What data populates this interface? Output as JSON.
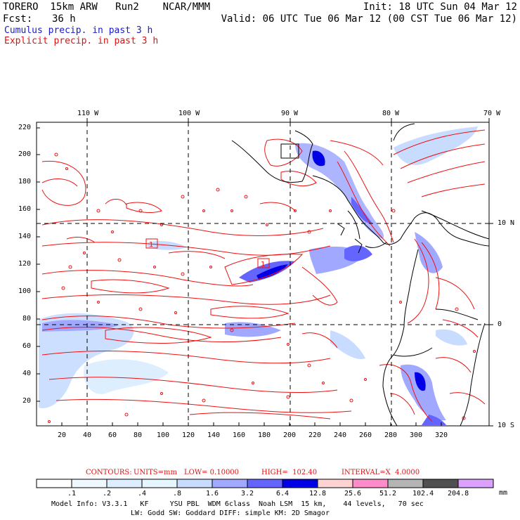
{
  "header": {
    "model_line": "TORERO  15km ARW   Run2    NCAR/MMM",
    "init": "Init: 18 UTC Sun 04 Mar 12",
    "fcst_label": "Fcst:",
    "fcst_value": "36 h",
    "valid": "Valid: 06 UTC Tue 06 Mar 12 (00 CST Tue 06 Mar 12)"
  },
  "legend": {
    "cumulus": "Cumulus precip. in past 3 h",
    "explicit": "Explicit precip. in past 3 h"
  },
  "map": {
    "lon_labels": [
      "110 W",
      "100 W",
      "90 W",
      "80 W",
      "70 W"
    ],
    "lat_labels_right": [
      "10 N",
      "0",
      "10 S"
    ],
    "y_ticks": [
      "220",
      "200",
      "180",
      "160",
      "140",
      "120",
      "100",
      "80",
      "60",
      "40",
      "20"
    ],
    "x_ticks": [
      "20",
      "40",
      "60",
      "80",
      "100",
      "120",
      "140",
      "160",
      "180",
      "200",
      "220",
      "240",
      "260",
      "280",
      "300",
      "320"
    ],
    "max_markers": [
      "1",
      "1"
    ]
  },
  "contour_info": {
    "label": "CONTOURS:",
    "units": "UNITS=mm",
    "low": "LOW= 0.10000",
    "high": "HIGH=  102.40",
    "interval": "INTERVAL=X  4.0000"
  },
  "colorbar": {
    "levels": [
      ".1",
      ".2",
      ".4",
      ".8",
      "1.6",
      "3.2",
      "6.4",
      "12.8",
      "25.6",
      "51.2",
      "102.4",
      "204.8"
    ],
    "colors": [
      "#ffffff",
      "#f0f8ff",
      "#ddeeff",
      "#e6f6ff",
      "#c8dcff",
      "#a0a8ff",
      "#6464ff",
      "#0000e6",
      "#ffd2d2",
      "#ff8cc8",
      "#b4b4b4",
      "#505050",
      "#dca0ff"
    ],
    "unit": "mm"
  },
  "footer": {
    "line1": "Model Info: V3.3.1   KF     YSU PBL  WDM 6class  Noah LSM  15 km,    44 levels,   70 sec",
    "line2": "LW: Godd SW: Goddard DIFF: simple KM: 2D Smagor"
  }
}
